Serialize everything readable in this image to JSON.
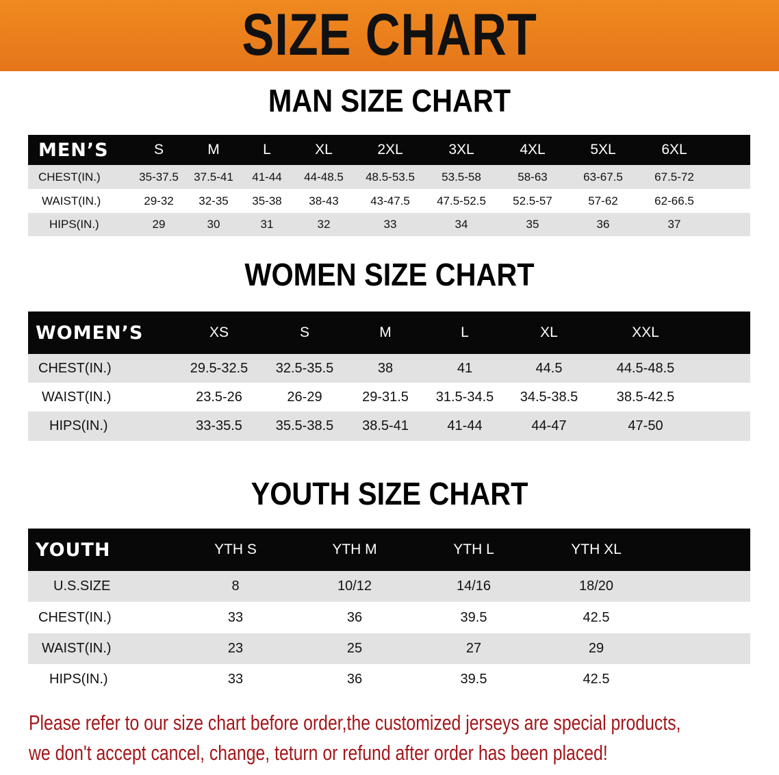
{
  "banner": {
    "title": "SIZE CHART",
    "color": "#ec801c"
  },
  "men": {
    "title": "MAN SIZE CHART",
    "header": "MEN’S",
    "sizes": [
      "S",
      "M",
      "L",
      "XL",
      "2XL",
      "3XL",
      "4XL",
      "5XL",
      "6XL"
    ],
    "rows": [
      {
        "label": "CHEST(IN.)",
        "values": [
          "35-37.5",
          "37.5-41",
          "41-44",
          "44-48.5",
          "48.5-53.5",
          "53.5-58",
          "58-63",
          "63-67.5",
          "67.5-72"
        ]
      },
      {
        "label": "WAIST(IN.)",
        "values": [
          "29-32",
          "32-35",
          "35-38",
          "38-43",
          "43-47.5",
          "47.5-52.5",
          "52.5-57",
          "57-62",
          "62-66.5"
        ]
      },
      {
        "label": "HIPS(IN.)",
        "values": [
          "29",
          "30",
          "31",
          "32",
          "33",
          "34",
          "35",
          "36",
          "37"
        ]
      }
    ]
  },
  "women": {
    "title": "WOMEN SIZE CHART",
    "header": "WOMEN’S",
    "sizes": [
      "XS",
      "S",
      "M",
      "L",
      "XL",
      "XXL"
    ],
    "rows": [
      {
        "label": "CHEST(IN.)",
        "values": [
          "29.5-32.5",
          "32.5-35.5",
          "38",
          "41",
          "44.5",
          "44.5-48.5"
        ]
      },
      {
        "label": "WAIST(IN.)",
        "values": [
          "23.5-26",
          "26-29",
          "29-31.5",
          "31.5-34.5",
          "34.5-38.5",
          "38.5-42.5"
        ]
      },
      {
        "label": "HIPS(IN.)",
        "values": [
          "33-35.5",
          "35.5-38.5",
          "38.5-41",
          "41-44",
          "44-47",
          "47-50"
        ]
      }
    ]
  },
  "youth": {
    "title": "YOUTH SIZE CHART",
    "header": "YOUTH",
    "sizes": [
      "YTH S",
      "YTH M",
      "YTH L",
      "YTH XL"
    ],
    "rows": [
      {
        "label": "U.S.SIZE",
        "values": [
          "8",
          "10/12",
          "14/16",
          "18/20"
        ]
      },
      {
        "label": "CHEST(IN.)",
        "values": [
          "33",
          "36",
          "39.5",
          "42.5"
        ]
      },
      {
        "label": "WAIST(IN.)",
        "values": [
          "23",
          "25",
          "27",
          "29"
        ]
      },
      {
        "label": "HIPS(IN.)",
        "values": [
          "33",
          "36",
          "39.5",
          "42.5"
        ]
      }
    ]
  },
  "notice": {
    "line1": "Please refer to our size chart before order,the customized jerseys are special products,",
    "line2": "we don't accept cancel, change, teturn or refund after order has been placed!",
    "color": "#a3161a"
  }
}
